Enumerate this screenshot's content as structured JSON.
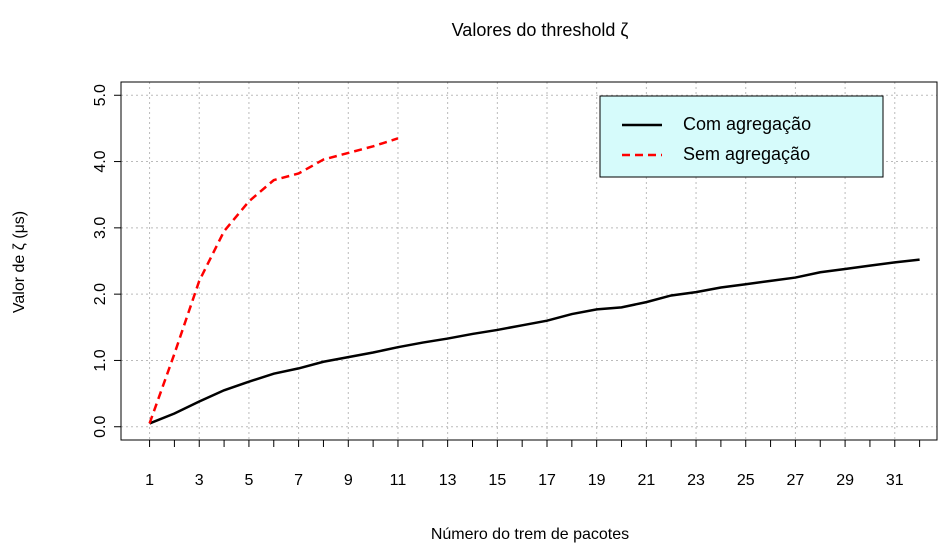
{
  "chart_data": {
    "type": "line",
    "title": "Valores do threshold  ζ",
    "x_label": "Número do trem de pacotes",
    "y_label": "Valor de ζ (μs)",
    "xlim": [
      -0.15,
      32.7
    ],
    "ylim": [
      -0.2,
      5.2
    ],
    "xticks": [
      1,
      3,
      5,
      7,
      9,
      11,
      13,
      15,
      17,
      19,
      21,
      23,
      25,
      27,
      29,
      31
    ],
    "xminor_ticks": [
      2,
      4,
      6,
      8,
      10,
      12,
      14,
      16,
      18,
      20,
      22,
      24,
      26,
      28,
      30,
      32
    ],
    "yticks": [
      {
        "value": 0,
        "label": "0.0"
      },
      {
        "value": 1,
        "label": "1.0"
      },
      {
        "value": 2,
        "label": "2.0"
      },
      {
        "value": 3,
        "label": "3.0"
      },
      {
        "value": 4,
        "label": "4.0"
      },
      {
        "value": 5,
        "label": "5.0"
      }
    ],
    "grid": true,
    "legend": "top-right",
    "series": [
      {
        "name": "Com agregação",
        "color": "#000000",
        "dash": "solid",
        "x": [
          1,
          2,
          3,
          4,
          5,
          6,
          7,
          8,
          9,
          10,
          11,
          12,
          13,
          14,
          15,
          16,
          17,
          18,
          19,
          20,
          21,
          22,
          23,
          24,
          25,
          26,
          27,
          28,
          29,
          30,
          31,
          32
        ],
        "values": [
          0.05,
          0.2,
          0.38,
          0.55,
          0.68,
          0.8,
          0.88,
          0.98,
          1.05,
          1.12,
          1.2,
          1.27,
          1.33,
          1.4,
          1.46,
          1.53,
          1.6,
          1.7,
          1.77,
          1.8,
          1.88,
          1.98,
          2.03,
          2.1,
          2.15,
          2.2,
          2.25,
          2.33,
          2.38,
          2.43,
          2.48,
          2.52
        ]
      },
      {
        "name": "Sem agregação",
        "color": "#ff0000",
        "dash": "dashed",
        "x": [
          1,
          2,
          3,
          4,
          5,
          6,
          7,
          8,
          9,
          10,
          11
        ],
        "values": [
          0.05,
          1.1,
          2.2,
          2.95,
          3.4,
          3.72,
          3.82,
          4.03,
          4.13,
          4.23,
          4.35
        ]
      }
    ]
  }
}
